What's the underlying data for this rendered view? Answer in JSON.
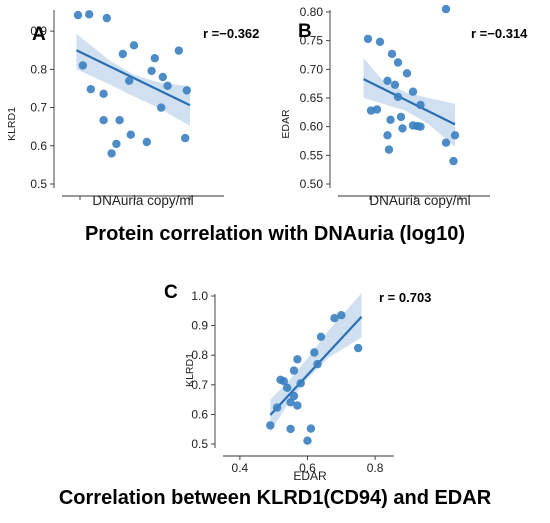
{
  "captions": {
    "top": "Protein correlation with DNAuria (log10)",
    "bottom": "Correlation between KLRD1(CD94) and EDAR"
  },
  "colors": {
    "points": "#3a7fc0",
    "fit_line": "#2a6fb3",
    "ci_band": "#a9c6e5"
  },
  "chart_data": [
    {
      "panel": "A",
      "type": "scatter",
      "r_label": "r =−0.362",
      "xlabel": "DNAuria copy/ml",
      "ylabel": "KLRD1",
      "x_ticks": [],
      "y_ticks": [
        "0.5",
        "0.6",
        "0.7",
        "0.8",
        "0.9"
      ],
      "ylim": [
        0.5,
        0.95
      ],
      "xlim": [
        0,
        1
      ],
      "grid": false,
      "legend": "none",
      "points": [
        {
          "x": 0.1,
          "y": 0.942
        },
        {
          "x": 0.17,
          "y": 0.944
        },
        {
          "x": 0.28,
          "y": 0.934
        },
        {
          "x": 0.45,
          "y": 0.863
        },
        {
          "x": 0.73,
          "y": 0.849
        },
        {
          "x": 0.38,
          "y": 0.84
        },
        {
          "x": 0.58,
          "y": 0.829
        },
        {
          "x": 0.13,
          "y": 0.81
        },
        {
          "x": 0.56,
          "y": 0.796
        },
        {
          "x": 0.63,
          "y": 0.78
        },
        {
          "x": 0.42,
          "y": 0.77
        },
        {
          "x": 0.66,
          "y": 0.757
        },
        {
          "x": 0.18,
          "y": 0.748
        },
        {
          "x": 0.78,
          "y": 0.745
        },
        {
          "x": 0.26,
          "y": 0.736
        },
        {
          "x": 0.62,
          "y": 0.7
        },
        {
          "x": 0.36,
          "y": 0.667
        },
        {
          "x": 0.26,
          "y": 0.667
        },
        {
          "x": 0.43,
          "y": 0.629
        },
        {
          "x": 0.77,
          "y": 0.62
        },
        {
          "x": 0.53,
          "y": 0.61
        },
        {
          "x": 0.34,
          "y": 0.605
        },
        {
          "x": 0.31,
          "y": 0.58
        }
      ],
      "fit": {
        "x": [
          0.09,
          0.8
        ],
        "y": [
          0.85,
          0.706
        ]
      },
      "ci_upper": [
        [
          0.09,
          0.893
        ],
        [
          0.3,
          0.822
        ],
        [
          0.45,
          0.786
        ],
        [
          0.6,
          0.766
        ],
        [
          0.8,
          0.756
        ]
      ],
      "ci_lower": [
        [
          0.09,
          0.8
        ],
        [
          0.3,
          0.76
        ],
        [
          0.45,
          0.729
        ],
        [
          0.6,
          0.7
        ],
        [
          0.8,
          0.652
        ]
      ]
    },
    {
      "panel": "B",
      "type": "scatter",
      "r_label": "r =−0.314",
      "xlabel": "DNAuria copy/ml",
      "ylabel": "EDAR",
      "x_ticks": [],
      "y_ticks": [
        "0.50",
        "0.55",
        "0.60",
        "0.65",
        "0.70",
        "0.75",
        "0.80"
      ],
      "ylim": [
        0.5,
        0.8
      ],
      "xlim": [
        0,
        1
      ],
      "grid": false,
      "legend": "none",
      "points": [
        {
          "x": 0.72,
          "y": 0.805
        },
        {
          "x": 0.2,
          "y": 0.753
        },
        {
          "x": 0.28,
          "y": 0.748
        },
        {
          "x": 0.36,
          "y": 0.727
        },
        {
          "x": 0.4,
          "y": 0.712
        },
        {
          "x": 0.46,
          "y": 0.693
        },
        {
          "x": 0.33,
          "y": 0.68
        },
        {
          "x": 0.38,
          "y": 0.673
        },
        {
          "x": 0.5,
          "y": 0.661
        },
        {
          "x": 0.4,
          "y": 0.652
        },
        {
          "x": 0.55,
          "y": 0.638
        },
        {
          "x": 0.22,
          "y": 0.628
        },
        {
          "x": 0.26,
          "y": 0.63
        },
        {
          "x": 0.42,
          "y": 0.617
        },
        {
          "x": 0.35,
          "y": 0.612
        },
        {
          "x": 0.5,
          "y": 0.602
        },
        {
          "x": 0.53,
          "y": 0.601
        },
        {
          "x": 0.55,
          "y": 0.6
        },
        {
          "x": 0.43,
          "y": 0.597
        },
        {
          "x": 0.33,
          "y": 0.585
        },
        {
          "x": 0.78,
          "y": 0.585
        },
        {
          "x": 0.72,
          "y": 0.572
        },
        {
          "x": 0.34,
          "y": 0.56
        },
        {
          "x": 0.77,
          "y": 0.54
        }
      ],
      "fit": {
        "x": [
          0.17,
          0.78
        ],
        "y": [
          0.683,
          0.604
        ]
      },
      "ci_upper": [
        [
          0.17,
          0.72
        ],
        [
          0.3,
          0.68
        ],
        [
          0.45,
          0.66
        ],
        [
          0.6,
          0.65
        ],
        [
          0.78,
          0.64
        ]
      ],
      "ci_lower": [
        [
          0.17,
          0.65
        ],
        [
          0.3,
          0.64
        ],
        [
          0.45,
          0.628
        ],
        [
          0.6,
          0.605
        ],
        [
          0.78,
          0.565
        ]
      ]
    },
    {
      "panel": "C",
      "type": "scatter",
      "r_label": "r = 0.703",
      "xlabel": "EDAR",
      "ylabel": "KLRD1",
      "x_ticks": [
        "0.4",
        "0.6",
        "0.8"
      ],
      "x_tick_values": [
        0.4,
        0.6,
        0.8
      ],
      "y_ticks": [
        "0.5",
        "0.6",
        "0.7",
        "0.8",
        "0.9",
        "1.0"
      ],
      "xlim": [
        0.35,
        0.85
      ],
      "ylim": [
        0.5,
        1.0
      ],
      "grid": false,
      "legend": "none",
      "points": [
        {
          "x": 0.7,
          "y": 0.935
        },
        {
          "x": 0.68,
          "y": 0.925
        },
        {
          "x": 0.64,
          "y": 0.862
        },
        {
          "x": 0.75,
          "y": 0.824
        },
        {
          "x": 0.62,
          "y": 0.809
        },
        {
          "x": 0.57,
          "y": 0.786
        },
        {
          "x": 0.63,
          "y": 0.77
        },
        {
          "x": 0.56,
          "y": 0.748
        },
        {
          "x": 0.52,
          "y": 0.717
        },
        {
          "x": 0.53,
          "y": 0.712
        },
        {
          "x": 0.58,
          "y": 0.705
        },
        {
          "x": 0.54,
          "y": 0.69
        },
        {
          "x": 0.56,
          "y": 0.662
        },
        {
          "x": 0.55,
          "y": 0.641
        },
        {
          "x": 0.57,
          "y": 0.63
        },
        {
          "x": 0.51,
          "y": 0.623
        },
        {
          "x": 0.49,
          "y": 0.563
        },
        {
          "x": 0.55,
          "y": 0.551
        },
        {
          "x": 0.61,
          "y": 0.552
        },
        {
          "x": 0.6,
          "y": 0.511
        }
      ],
      "fit": {
        "x": [
          0.49,
          0.76
        ],
        "y": [
          0.598,
          0.93
        ]
      },
      "ci_upper": [
        [
          0.49,
          0.65
        ],
        [
          0.55,
          0.72
        ],
        [
          0.6,
          0.79
        ],
        [
          0.66,
          0.88
        ],
        [
          0.76,
          1.01
        ]
      ],
      "ci_lower": [
        [
          0.49,
          0.54
        ],
        [
          0.55,
          0.65
        ],
        [
          0.6,
          0.72
        ],
        [
          0.66,
          0.79
        ],
        [
          0.76,
          0.86
        ]
      ]
    }
  ]
}
